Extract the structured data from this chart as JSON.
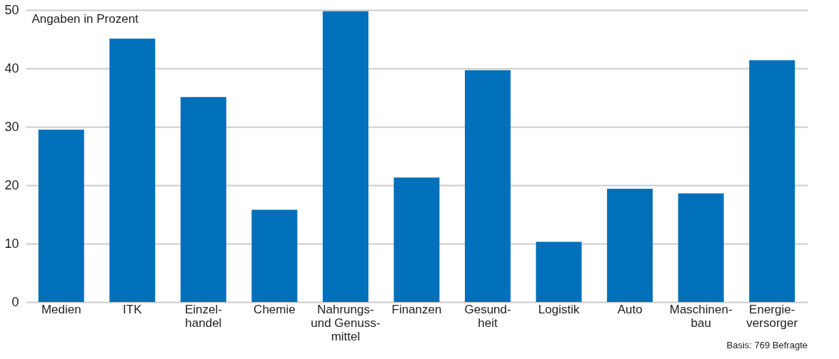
{
  "chart_data": {
    "type": "bar",
    "ylabel": "Angaben in Prozent",
    "categories": [
      "Medien",
      "ITK",
      "Einzel-\nhandel",
      "Chemie",
      "Nahrungs-\nund Genuss-\nmittel",
      "Finanzen",
      "Gesund-\nheit",
      "Logistik",
      "Auto",
      "Maschinen-\nbau",
      "Energie-\nversorger"
    ],
    "values": [
      29.5,
      45.1,
      35.1,
      15.8,
      49.8,
      21.3,
      39.7,
      10.3,
      19.4,
      18.6,
      41.4
    ],
    "color": "#0070bb",
    "ylim": [
      0,
      50
    ],
    "yticks": [
      0,
      10,
      20,
      30,
      40,
      50
    ],
    "grid": "y",
    "annotations": [
      "Basis: 769 Befragte"
    ]
  }
}
